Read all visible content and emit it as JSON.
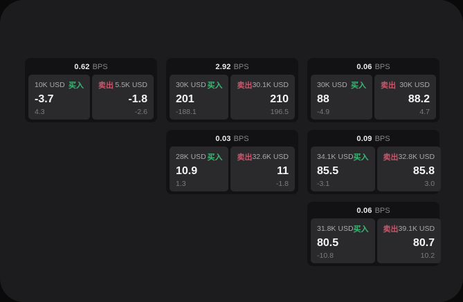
{
  "colors": {
    "buy_green": "#3eb575",
    "sell_red": "#c9566a",
    "panel_background": "#1c1c1e",
    "card_background": "#121214",
    "tile_background": "#2a2a2c"
  },
  "labels": {
    "bps_unit": "BPS",
    "buy": "买入",
    "sell": "卖出"
  },
  "cards": [
    {
      "row": 1,
      "col": 1,
      "bps": "0.62",
      "buy": {
        "amount": "10K USD",
        "value": "-3.7",
        "sub": "4.3"
      },
      "sell": {
        "amount": "5.5K USD",
        "value": "-1.8",
        "sub": "-2.6"
      }
    },
    {
      "row": 1,
      "col": 2,
      "bps": "2.92",
      "buy": {
        "amount": "30K USD",
        "value": "201",
        "sub": "-188.1"
      },
      "sell": {
        "amount": "30.1K USD",
        "value": "210",
        "sub": "196.5"
      }
    },
    {
      "row": 1,
      "col": 3,
      "bps": "0.06",
      "buy": {
        "amount": "30K USD",
        "value": "88",
        "sub": "-4.9"
      },
      "sell": {
        "amount": "30K USD",
        "value": "88.2",
        "sub": "4.7"
      }
    },
    {
      "row": 2,
      "col": 2,
      "bps": "0.03",
      "buy": {
        "amount": "28K USD",
        "value": "10.9",
        "sub": "1.3"
      },
      "sell": {
        "amount": "32.6K USD",
        "value": "11",
        "sub": "-1.8"
      }
    },
    {
      "row": 2,
      "col": 3,
      "bps": "0.09",
      "buy": {
        "amount": "34.1K USD",
        "value": "85.5",
        "sub": "-3.1"
      },
      "sell": {
        "amount": "32.8K USD",
        "value": "85.8",
        "sub": "3.0"
      }
    },
    {
      "row": 3,
      "col": 3,
      "bps": "0.06",
      "buy": {
        "amount": "31.8K USD",
        "value": "80.5",
        "sub": "-10.8"
      },
      "sell": {
        "amount": "39.1K USD",
        "value": "80.7",
        "sub": "10.2"
      }
    }
  ]
}
